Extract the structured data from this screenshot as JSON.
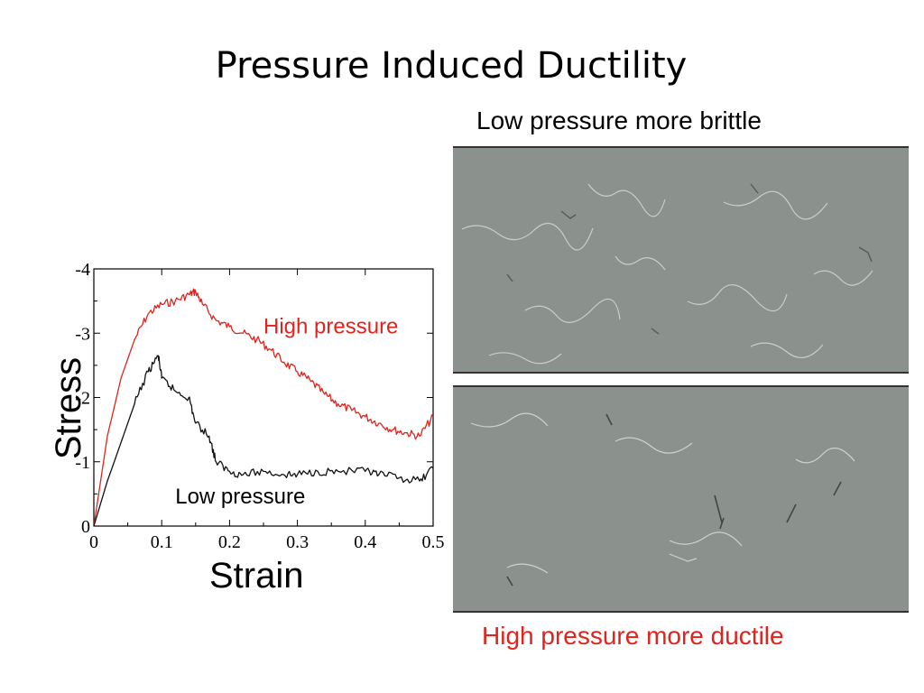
{
  "slide": {
    "title": "Pressure Induced Ductility",
    "caption_top": "Low pressure more brittle",
    "caption_bottom": "High pressure more ductile"
  },
  "colors": {
    "high": "#e0231c",
    "low": "#111111",
    "panel_bg": "#8b918d"
  },
  "chart_data": {
    "type": "line",
    "xlabel": "Strain",
    "ylabel": "Stress",
    "xlim": [
      0,
      0.5
    ],
    "ylim": [
      0,
      -4
    ],
    "xticks": [
      "0",
      "0.1",
      "0.2",
      "0.3",
      "0.4",
      "0.5"
    ],
    "yticks": [
      "0",
      "-1",
      "-2",
      "-3",
      "-4"
    ],
    "grid": false,
    "series": [
      {
        "name": "High pressure",
        "color": "#e0231c",
        "x": [
          0,
          0.02,
          0.04,
          0.06,
          0.08,
          0.1,
          0.12,
          0.14,
          0.15,
          0.16,
          0.18,
          0.2,
          0.22,
          0.24,
          0.26,
          0.28,
          0.3,
          0.32,
          0.34,
          0.36,
          0.38,
          0.4,
          0.42,
          0.44,
          0.46,
          0.48,
          0.5
        ],
        "y": [
          0,
          -1.4,
          -2.3,
          -2.9,
          -3.3,
          -3.45,
          -3.5,
          -3.6,
          -3.65,
          -3.45,
          -3.2,
          -3.1,
          -3.0,
          -2.9,
          -2.75,
          -2.55,
          -2.4,
          -2.25,
          -2.05,
          -1.9,
          -1.8,
          -1.7,
          -1.6,
          -1.5,
          -1.45,
          -1.4,
          -1.7
        ]
      },
      {
        "name": "Low pressure",
        "color": "#111111",
        "x": [
          0,
          0.02,
          0.04,
          0.06,
          0.08,
          0.095,
          0.1,
          0.12,
          0.14,
          0.15,
          0.17,
          0.18,
          0.2,
          0.22,
          0.25,
          0.28,
          0.3,
          0.33,
          0.36,
          0.4,
          0.42,
          0.45,
          0.48,
          0.5
        ],
        "y": [
          0,
          -0.7,
          -1.3,
          -1.9,
          -2.4,
          -2.65,
          -2.3,
          -2.1,
          -2.0,
          -1.6,
          -1.4,
          -1.0,
          -0.85,
          -0.8,
          -0.85,
          -0.8,
          -0.8,
          -0.85,
          -0.85,
          -0.85,
          -0.8,
          -0.75,
          -0.7,
          -0.9
        ]
      }
    ]
  }
}
